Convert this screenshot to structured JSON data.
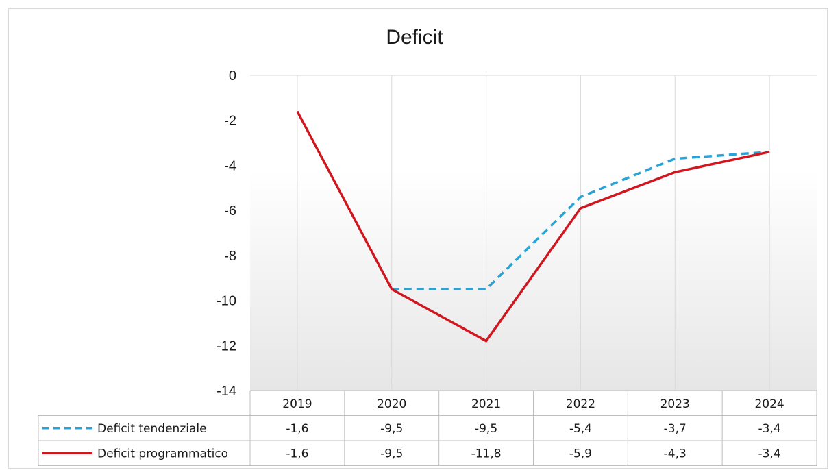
{
  "chart_data": {
    "type": "line",
    "title": "Deficit",
    "xlabel": "",
    "ylabel": "",
    "ylim": [
      -14,
      0
    ],
    "yticks": [
      0,
      -2,
      -4,
      -6,
      -8,
      -10,
      -12,
      -14
    ],
    "categories": [
      "2019",
      "2020",
      "2021",
      "2022",
      "2023",
      "2024"
    ],
    "grid": "vertical",
    "legend": "data-table",
    "series": [
      {
        "name": "Deficit tendenziale",
        "values": [
          -1.6,
          -9.5,
          -9.5,
          -5.4,
          -3.7,
          -3.4
        ],
        "labels": [
          "-1,6",
          "-9,5",
          "-9,5",
          "-5,4",
          "-3,7",
          "-3,4"
        ],
        "color": "#2aa3d6",
        "style": "dashed"
      },
      {
        "name": "Deficit programmatico",
        "values": [
          -1.6,
          -9.5,
          -11.8,
          -5.9,
          -4.3,
          -3.4
        ],
        "labels": [
          "-1,6",
          "-9,5",
          "-11,8",
          "-5,9",
          "-4,3",
          "-3,4"
        ],
        "color": "#d0161f",
        "style": "solid"
      }
    ]
  }
}
